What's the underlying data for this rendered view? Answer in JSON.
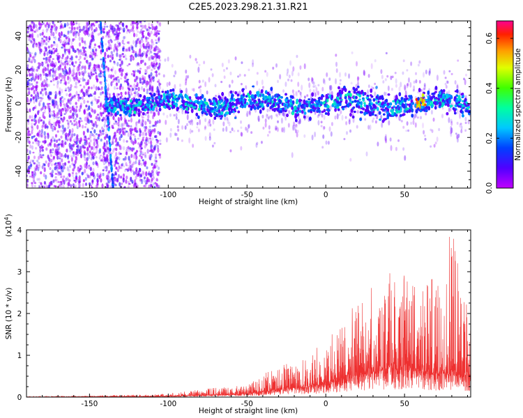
{
  "title": "C2E5.2023.298.21.31.R21",
  "colors": {
    "snr_line": "#ee3030",
    "axis": "#000000"
  },
  "chart_data": [
    {
      "type": "heatmap",
      "name": "spectrogram",
      "xlabel": "Height of straight line (km)",
      "ylabel": "Frequency (Hz)",
      "xlim": [
        -190,
        92
      ],
      "ylim": [
        -50,
        49
      ],
      "xticks": [
        -150,
        -100,
        -50,
        0,
        50
      ],
      "yticks": [
        -40,
        -20,
        0,
        20,
        40
      ],
      "colormap": "gist_rainbow",
      "colorbar": {
        "label": "Normalized spectral amplitude",
        "range": [
          0,
          0.67
        ],
        "ticks": [
          0.0,
          0.2,
          0.4,
          0.6
        ],
        "tick_labels": [
          "0.0",
          "0.2",
          "0.4",
          "0.6"
        ]
      },
      "description": "Broadband energy below -105 km; narrow band centred near 0 Hz (±10 Hz) from -105 to 92 km with peaks near 0.6 around 60 km; oblique streak from (-143,49) to (-135,-50)."
    },
    {
      "type": "line",
      "name": "snr",
      "xlabel": "Height of straight line (km)",
      "ylabel": "SNR (10 * v/v)",
      "y_multiplier": "(x10",
      "y_multiplier_exp": "4",
      "y_multiplier_close": ")",
      "xlim": [
        -190,
        92
      ],
      "ylim": [
        0,
        4
      ],
      "xticks": [
        -150,
        -100,
        -50,
        0,
        50
      ],
      "yticks": [
        0,
        1,
        2,
        3,
        4
      ],
      "series": [
        {
          "x": [
            -190,
            -160,
            -130,
            -110,
            -100,
            -90,
            -80,
            -70,
            -60,
            -50,
            -40,
            -30,
            -20,
            -10,
            0,
            10,
            20,
            30,
            40,
            50,
            60,
            70,
            80,
            92
          ],
          "y_envelope": [
            0.02,
            0.03,
            0.05,
            0.06,
            0.08,
            0.13,
            0.18,
            0.22,
            0.24,
            0.3,
            0.55,
            0.7,
            0.9,
            1.05,
            1.4,
            1.75,
            2.3,
            2.7,
            3.1,
            2.9,
            2.6,
            2.9,
            4.0,
            1.85
          ],
          "y_base": [
            0.0,
            0.005,
            0.01,
            0.01,
            0.02,
            0.03,
            0.04,
            0.05,
            0.06,
            0.07,
            0.12,
            0.16,
            0.2,
            0.24,
            0.3,
            0.38,
            0.48,
            0.56,
            0.62,
            0.62,
            0.55,
            0.52,
            0.5,
            0.48
          ]
        }
      ]
    }
  ]
}
